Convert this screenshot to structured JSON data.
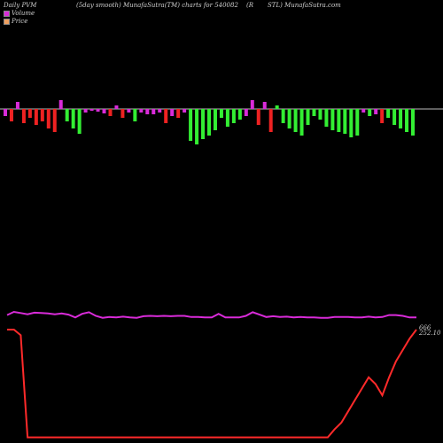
{
  "header": {
    "left": "Daily PVM",
    "center": "(5day smooth) MunafaSutra(TM) charts for 540082",
    "right1": "(R",
    "right2": "STL) MunafaSutra.com"
  },
  "legend": [
    {
      "label": "Volume",
      "color": "#d92bd9"
    },
    {
      "label": "Price",
      "color": "#f0a060"
    }
  ],
  "colors": {
    "up": "#33ee33",
    "down": "#ee2222",
    "neutral": "#d92bd9",
    "line_price_smooth": "#d92bd9",
    "line_price": "#ff2a2a",
    "baseline": "#bbbbbb"
  },
  "chart_data": {
    "type": "bar",
    "title": "(5day smooth) MunafaSutra(TM) charts for 540082",
    "volume_bars": [
      {
        "v": 8,
        "c": "neutral"
      },
      {
        "v": 14,
        "c": "down"
      },
      {
        "v": -8,
        "c": "neutral"
      },
      {
        "v": 16,
        "c": "down"
      },
      {
        "v": 10,
        "c": "down"
      },
      {
        "v": 18,
        "c": "down"
      },
      {
        "v": 14,
        "c": "down"
      },
      {
        "v": 22,
        "c": "down"
      },
      {
        "v": 26,
        "c": "down"
      },
      {
        "v": -10,
        "c": "neutral"
      },
      {
        "v": 14,
        "c": "up"
      },
      {
        "v": 22,
        "c": "up"
      },
      {
        "v": 28,
        "c": "up"
      },
      {
        "v": 4,
        "c": "neutral"
      },
      {
        "v": 2,
        "c": "neutral"
      },
      {
        "v": 3,
        "c": "neutral"
      },
      {
        "v": 5,
        "c": "neutral"
      },
      {
        "v": 8,
        "c": "down"
      },
      {
        "v": -4,
        "c": "neutral"
      },
      {
        "v": 10,
        "c": "down"
      },
      {
        "v": 4,
        "c": "neutral"
      },
      {
        "v": 14,
        "c": "up"
      },
      {
        "v": 4,
        "c": "neutral"
      },
      {
        "v": 6,
        "c": "neutral"
      },
      {
        "v": 6,
        "c": "neutral"
      },
      {
        "v": 4,
        "c": "neutral"
      },
      {
        "v": 16,
        "c": "down"
      },
      {
        "v": 8,
        "c": "neutral"
      },
      {
        "v": 10,
        "c": "down"
      },
      {
        "v": 4,
        "c": "neutral"
      },
      {
        "v": 36,
        "c": "up"
      },
      {
        "v": 40,
        "c": "up"
      },
      {
        "v": 34,
        "c": "up"
      },
      {
        "v": 30,
        "c": "up"
      },
      {
        "v": 24,
        "c": "up"
      },
      {
        "v": 10,
        "c": "up"
      },
      {
        "v": 20,
        "c": "up"
      },
      {
        "v": 16,
        "c": "up"
      },
      {
        "v": 12,
        "c": "up"
      },
      {
        "v": 8,
        "c": "neutral"
      },
      {
        "v": -10,
        "c": "neutral"
      },
      {
        "v": 18,
        "c": "down"
      },
      {
        "v": -8,
        "c": "neutral"
      },
      {
        "v": 26,
        "c": "down"
      },
      {
        "v": -4,
        "c": "up"
      },
      {
        "v": 16,
        "c": "up"
      },
      {
        "v": 22,
        "c": "up"
      },
      {
        "v": 26,
        "c": "up"
      },
      {
        "v": 30,
        "c": "up"
      },
      {
        "v": 18,
        "c": "up"
      },
      {
        "v": 8,
        "c": "up"
      },
      {
        "v": 12,
        "c": "up"
      },
      {
        "v": 20,
        "c": "up"
      },
      {
        "v": 24,
        "c": "up"
      },
      {
        "v": 26,
        "c": "up"
      },
      {
        "v": 28,
        "c": "up"
      },
      {
        "v": 32,
        "c": "up"
      },
      {
        "v": 30,
        "c": "up"
      },
      {
        "v": 4,
        "c": "neutral"
      },
      {
        "v": 8,
        "c": "up"
      },
      {
        "v": 6,
        "c": "neutral"
      },
      {
        "v": 16,
        "c": "down"
      },
      {
        "v": 10,
        "c": "up"
      },
      {
        "v": 18,
        "c": "up"
      },
      {
        "v": 22,
        "c": "up"
      },
      {
        "v": 26,
        "c": "up"
      },
      {
        "v": 30,
        "c": "up"
      }
    ],
    "price_smooth": [
      0.08,
      0.0,
      0.03,
      0.06,
      0.02,
      0.03,
      0.04,
      0.06,
      0.04,
      0.07,
      0.14,
      0.05,
      0.01,
      0.1,
      0.15,
      0.13,
      0.14,
      0.12,
      0.14,
      0.15,
      0.11,
      0.1,
      0.11,
      0.1,
      0.11,
      0.1,
      0.1,
      0.13,
      0.13,
      0.14,
      0.14,
      0.05,
      0.14,
      0.14,
      0.14,
      0.1,
      0.01,
      0.07,
      0.13,
      0.11,
      0.13,
      0.12,
      0.14,
      0.13,
      0.14,
      0.14,
      0.15,
      0.15,
      0.13,
      0.13,
      0.13,
      0.14,
      0.14,
      0.12,
      0.14,
      0.13,
      0.08,
      0.08,
      0.1,
      0.14,
      0.14
    ],
    "price": [
      0.0,
      0.0,
      0.05,
      0.95,
      0.95,
      0.95,
      0.95,
      0.95,
      0.95,
      0.95,
      0.95,
      0.95,
      0.95,
      0.95,
      0.95,
      0.95,
      0.95,
      0.95,
      0.95,
      0.95,
      0.95,
      0.95,
      0.95,
      0.95,
      0.95,
      0.95,
      0.95,
      0.95,
      0.95,
      0.95,
      0.95,
      0.95,
      0.95,
      0.95,
      0.95,
      0.95,
      0.95,
      0.95,
      0.95,
      0.95,
      0.95,
      0.95,
      0.95,
      0.95,
      0.95,
      0.95,
      0.95,
      0.95,
      0.88,
      0.82,
      0.72,
      0.62,
      0.52,
      0.42,
      0.48,
      0.58,
      0.42,
      0.28,
      0.18,
      0.08,
      0.0
    ],
    "price_labels": [
      "666",
      "252.10"
    ]
  }
}
